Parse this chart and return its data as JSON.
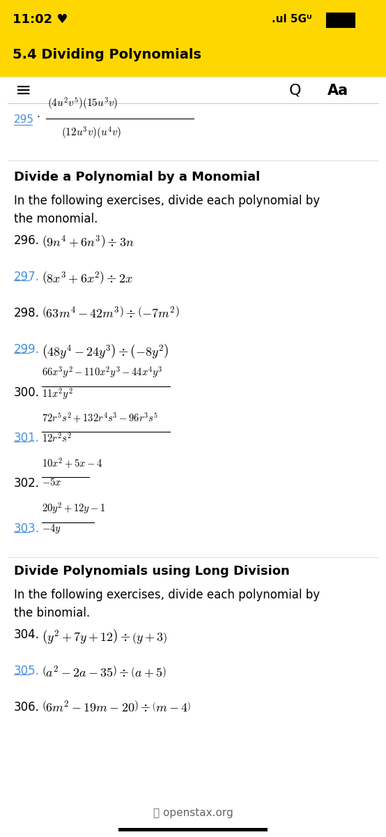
{
  "bg_top_color": "#FFD700",
  "bg_white_color": "#FFFFFF",
  "text_color": "#000000",
  "link_color": "#4A90D9",
  "status_bar_text": "11:02 ♥",
  "header_title": "5.4 Dividing Polynomials",
  "section1_header": "Divide a Polynomial by a Monomial",
  "section1_intro": "In the following exercises, divide each polynomial by\nthe monomial.",
  "section2_header": "Divide Polynomials using Long Division",
  "section2_intro": "In the following exercises, divide each polynomial by\nthe binomial.",
  "footer": "openstax.org",
  "nav_hamburger": "≡",
  "nav_search": "Q",
  "nav_font": "Aa"
}
